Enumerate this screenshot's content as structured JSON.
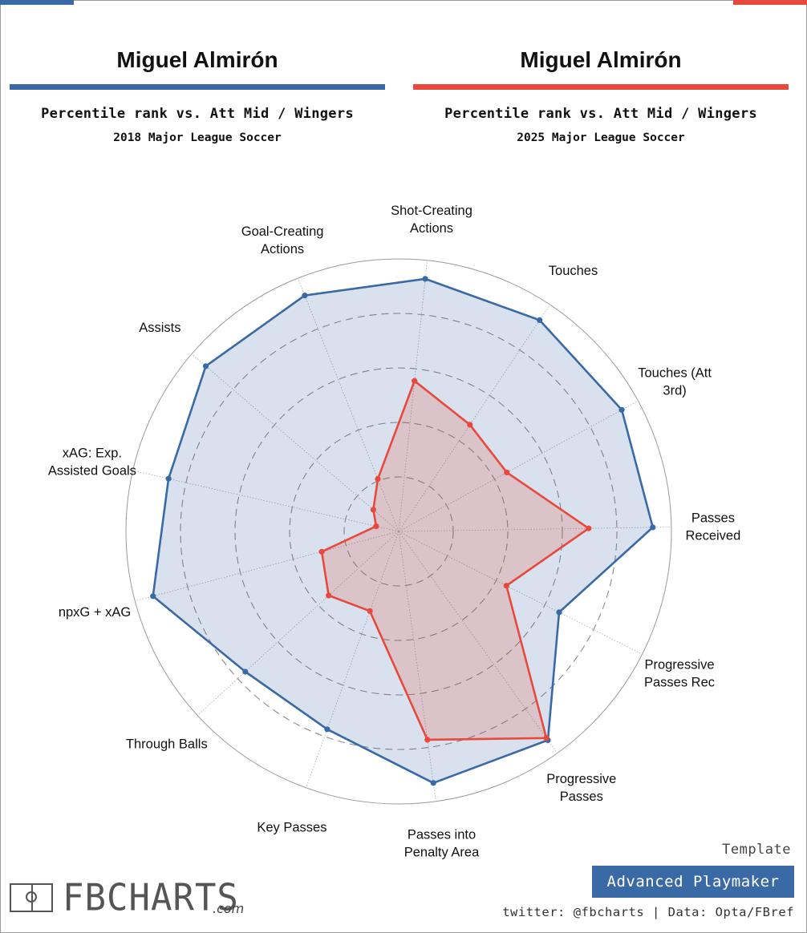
{
  "players": [
    {
      "name": "Miguel Almirón",
      "subtitle": "Percentile rank vs. Att Mid / Wingers",
      "season": "2018 Major League Soccer",
      "color": "#3a6aa5"
    },
    {
      "name": "Miguel Almirón",
      "subtitle": "Percentile rank vs. Att Mid / Wingers",
      "season": "2025 Major League Soccer",
      "color": "#e8493c"
    }
  ],
  "chart_data": {
    "type": "radar",
    "title": "Percentile rank vs. Att Mid / Wingers",
    "rlim": [
      0,
      100
    ],
    "ring_values": [
      20,
      40,
      60,
      80,
      100
    ],
    "axes": [
      "Shot-Creating Actions",
      "Touches",
      "Touches (Att 3rd)",
      "Passes Received",
      "Progressive Passes Rec",
      "Progressive Passes",
      "Passes into Penalty Area",
      "Key Passes",
      "Through Balls",
      "npxG + xAG",
      "xAG: Exp. Assisted Goals",
      "Assists",
      "Goal-Creating Actions"
    ],
    "axis_label_lines": [
      [
        "Shot-Creating",
        "Actions"
      ],
      [
        "Touches"
      ],
      [
        "Touches (Att",
        "3rd)"
      ],
      [
        "Passes",
        "Received"
      ],
      [
        "Progressive",
        "Passes Rec"
      ],
      [
        "Progressive",
        "Passes"
      ],
      [
        "Passes into",
        "Penalty Area"
      ],
      [
        "Key Passes"
      ],
      [
        "Through Balls"
      ],
      [
        "npxG + xAG"
      ],
      [
        "xAG: Exp.",
        "Assisted Goals"
      ],
      [
        "Assists"
      ],
      [
        "Goal-Creating",
        "Actions"
      ]
    ],
    "series": [
      {
        "name": "Miguel Almirón 2018 Major League Soccer",
        "color": "#3a6aa5",
        "fill": "rgba(58,106,165,0.2)",
        "values": [
          99,
          99,
          99,
          99,
          70,
          100,
          99,
          82,
          81,
          99,
          92,
          99,
          99
        ]
      },
      {
        "name": "Miguel Almirón 2025 Major League Soccer",
        "color": "#e8493c",
        "fill": "rgba(232,73,60,0.2)",
        "values": [
          59,
          50,
          48,
          74,
          47,
          99,
          82,
          33,
          37,
          31,
          9,
          13,
          22
        ]
      }
    ]
  },
  "branding": {
    "logo_text": "FBCHARTS",
    "logo_suffix": ".com",
    "template_label": "Template",
    "template_name": "Advanced Playmaker",
    "credits": "twitter: @fbcharts | Data: Opta/FBref"
  }
}
